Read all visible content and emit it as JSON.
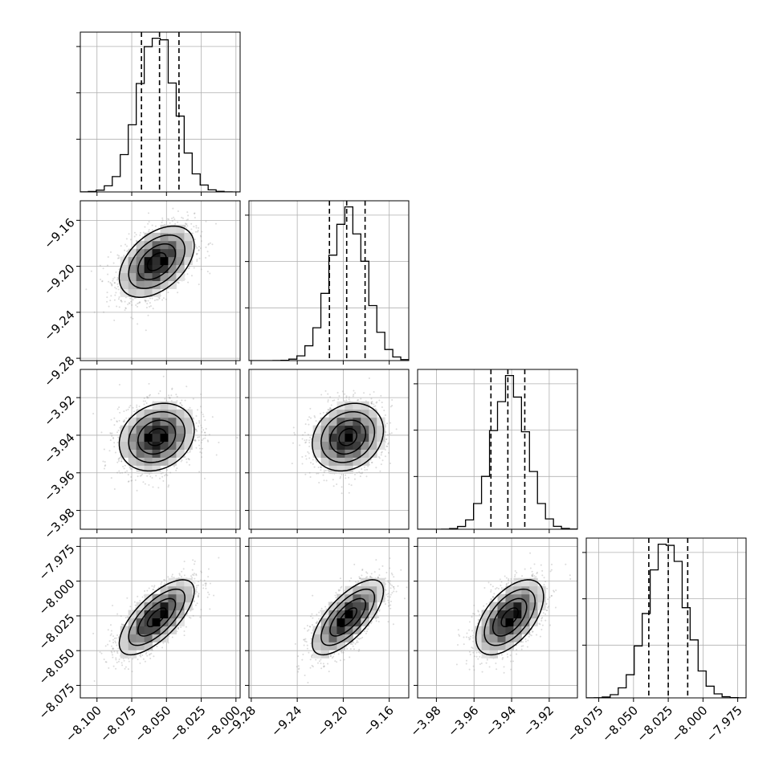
{
  "figure": {
    "type": "corner-plot",
    "n_params": 4,
    "colors": {
      "axes": "#000000",
      "grid": "#b0b0b0",
      "scatter": "#999999",
      "contour": "#000000",
      "density_dark": "#000000",
      "density_light": "#ffffff",
      "quantile_line": "#000000"
    }
  },
  "chart_data": {
    "type": "corner",
    "params": [
      {
        "name": "",
        "range": [
          -8.112,
          -7.997
        ],
        "ticks": [
          -8.1,
          -8.075,
          -8.05,
          -8.025,
          -8.0
        ],
        "tick_labels": [
          "−8.100",
          "−8.075",
          "−8.050",
          "−8.025",
          "−8.000"
        ],
        "quantiles": [
          -8.068,
          -8.055,
          -8.041
        ],
        "hist_peak": -8.057,
        "hist_sigma": 0.0135,
        "hist_top": 0.0
      },
      {
        "name": "",
        "range": [
          -9.282,
          -9.143
        ],
        "ticks": [
          -9.28,
          -9.24,
          -9.2,
          -9.16
        ],
        "tick_labels": [
          "−9.28",
          "−9.24",
          "−9.20",
          "−9.16"
        ],
        "quantiles": [
          -9.212,
          -9.197,
          -9.181
        ],
        "hist_peak": -9.196,
        "hist_sigma": 0.0155,
        "hist_top": 0.0
      },
      {
        "name": "",
        "range": [
          -3.99,
          -3.905
        ],
        "ticks": [
          -3.98,
          -3.96,
          -3.94,
          -3.92
        ],
        "tick_labels": [
          "−3.98",
          "−3.96",
          "−3.94",
          "−3.92"
        ],
        "quantiles": [
          -3.951,
          -3.942,
          -3.933
        ],
        "hist_peak": -3.941,
        "hist_sigma": 0.009,
        "hist_top": 0.0
      },
      {
        "name": "",
        "range": [
          -8.084,
          -7.969
        ],
        "ticks": [
          -8.075,
          -8.05,
          -8.025,
          -8.0,
          -7.975
        ],
        "tick_labels": [
          "−8.075",
          "−8.050",
          "−8.025",
          "−8.000",
          "−7.975"
        ],
        "quantiles": [
          -8.039,
          -8.025,
          -8.011
        ],
        "hist_peak": -8.026,
        "hist_sigma": 0.0135,
        "hist_top": 0.0
      }
    ],
    "correlations": [
      [
        1.0,
        0.45,
        0.2,
        0.7
      ],
      [
        0.45,
        1.0,
        0.2,
        0.7
      ],
      [
        0.2,
        0.2,
        1.0,
        0.55
      ],
      [
        0.7,
        0.7,
        0.55,
        1.0
      ]
    ],
    "contour_levels_sigma": [
      0.5,
      1.0,
      1.5,
      2.0
    ],
    "scatter_points": 1800,
    "hist_bins": 20,
    "grid": true
  }
}
